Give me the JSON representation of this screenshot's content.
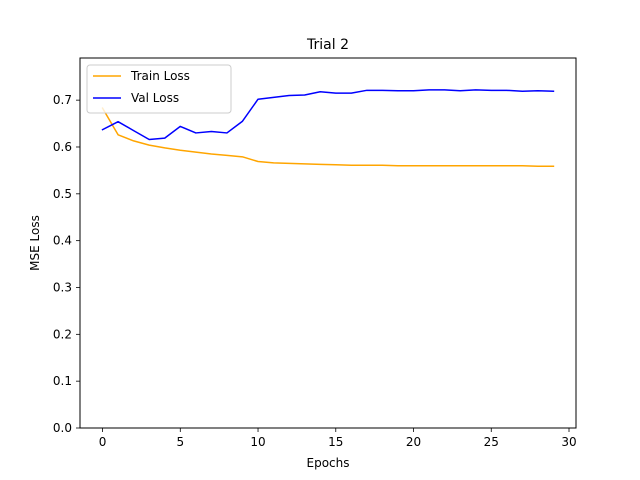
{
  "chart_data": {
    "type": "line",
    "title": "Trial 2",
    "xlabel": "Epochs",
    "ylabel": "MSE Loss",
    "xlim": [
      -1.45,
      30.45
    ],
    "ylim": [
      0,
      0.79
    ],
    "xticks": [
      0,
      5,
      10,
      15,
      20,
      25,
      30
    ],
    "yticks": [
      0.0,
      0.1,
      0.2,
      0.3,
      0.4,
      0.5,
      0.6,
      0.7
    ],
    "grid": false,
    "legend_position": "top-left",
    "x": [
      0,
      1,
      2,
      3,
      4,
      5,
      6,
      7,
      8,
      9,
      10,
      11,
      12,
      13,
      14,
      15,
      16,
      17,
      18,
      19,
      20,
      21,
      22,
      23,
      24,
      25,
      26,
      27,
      28,
      29
    ],
    "series": [
      {
        "name": "Train Loss",
        "color": "#FFA500",
        "values": [
          0.683,
          0.626,
          0.613,
          0.604,
          0.598,
          0.593,
          0.589,
          0.585,
          0.582,
          0.579,
          0.569,
          0.566,
          0.565,
          0.564,
          0.563,
          0.562,
          0.561,
          0.561,
          0.561,
          0.56,
          0.56,
          0.56,
          0.56,
          0.56,
          0.56,
          0.56,
          0.56,
          0.56,
          0.559,
          0.559
        ]
      },
      {
        "name": "Val Loss",
        "color": "#0000FF",
        "values": [
          0.637,
          0.654,
          0.635,
          0.616,
          0.619,
          0.644,
          0.63,
          0.633,
          0.63,
          0.655,
          0.702,
          0.706,
          0.71,
          0.711,
          0.718,
          0.715,
          0.715,
          0.721,
          0.721,
          0.72,
          0.72,
          0.722,
          0.722,
          0.72,
          0.722,
          0.721,
          0.721,
          0.719,
          0.72,
          0.719
        ]
      }
    ]
  }
}
